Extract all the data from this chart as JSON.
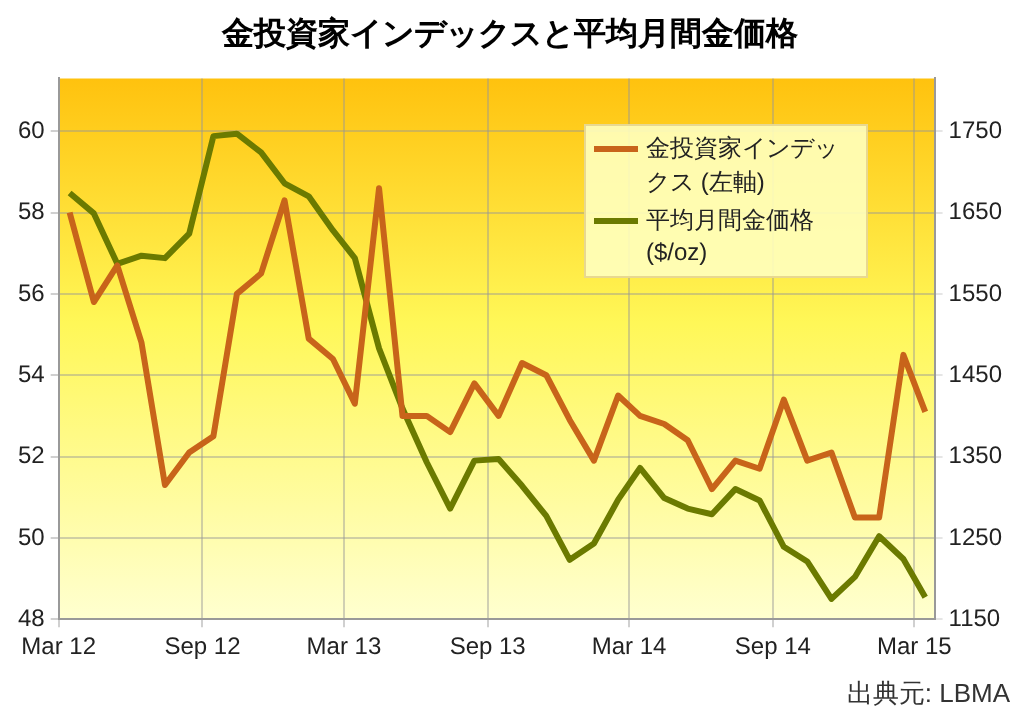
{
  "chart_data": {
    "type": "line",
    "title": "金投資家インデックスと平均月間金価格",
    "x": [
      "2012-03-15",
      "2012-04-15",
      "2012-05-15",
      "2012-06-15",
      "2012-07-15",
      "2012-08-15",
      "2012-09-15",
      "2012-10-15",
      "2012-11-15",
      "2012-12-15",
      "2013-01-15",
      "2013-02-15",
      "2013-03-15",
      "2013-04-15",
      "2013-05-15",
      "2013-06-15",
      "2013-07-15",
      "2013-08-15",
      "2013-09-15",
      "2013-10-15",
      "2013-11-15",
      "2013-12-15",
      "2014-01-15",
      "2014-02-15",
      "2014-03-15",
      "2014-04-15",
      "2014-05-15",
      "2014-06-15",
      "2014-07-15",
      "2014-08-15",
      "2014-09-15",
      "2014-10-15",
      "2014-11-15",
      "2014-12-15",
      "2015-01-15",
      "2015-02-15",
      "2015-03-15"
    ],
    "series": [
      {
        "name": "金投資家インデックス (左軸)",
        "color": "#c8641a",
        "values": [
          58.0,
          55.8,
          56.7,
          54.8,
          51.3,
          52.1,
          52.5,
          56.0,
          56.5,
          58.3,
          54.9,
          54.4,
          53.3,
          58.6,
          53.0,
          53.0,
          52.6,
          53.8,
          53.0,
          54.3,
          54.0,
          52.9,
          51.9,
          53.5,
          53.0,
          52.8,
          52.4,
          51.2,
          51.9,
          51.7,
          53.4,
          51.9,
          52.1,
          50.5,
          50.5,
          54.5,
          53.1
        ]
      },
      {
        "name": "平均月間金価格 ($/oz)",
        "color": "#6b7a00",
        "axis": "y2",
        "values": [
          1674,
          1649,
          1587,
          1597,
          1594,
          1624,
          1744,
          1747,
          1724,
          1686,
          1670,
          1628,
          1594,
          1483,
          1409,
          1343,
          1286,
          1345,
          1347,
          1314,
          1277,
          1223,
          1243,
          1297,
          1336,
          1299,
          1286,
          1279,
          1310,
          1296,
          1239,
          1221,
          1175,
          1202,
          1252,
          1224,
          1177
        ]
      }
    ],
    "xlim": [
      "2012-03-01",
      "2015-03-27"
    ],
    "xticks": [
      {
        "value": "2012-03-01",
        "label": "Mar 12"
      },
      {
        "value": "2012-09-01",
        "label": "Sep 12"
      },
      {
        "value": "2013-03-01",
        "label": "Mar 13"
      },
      {
        "value": "2013-09-01",
        "label": "Sep 13"
      },
      {
        "value": "2014-03-01",
        "label": "Mar 14"
      },
      {
        "value": "2014-09-01",
        "label": "Sep 14"
      },
      {
        "value": "2015-03-01",
        "label": "Mar 15"
      }
    ],
    "ylim": [
      48,
      61.3
    ],
    "yticks": [
      48,
      50,
      52,
      54,
      56,
      58,
      60
    ],
    "y2lim": [
      1150,
      1815
    ],
    "y2ticks": [
      1150,
      1250,
      1350,
      1450,
      1550,
      1650,
      1750
    ],
    "grid": true,
    "legend": "top right",
    "annotations": [
      "出典元: LBMA"
    ]
  }
}
